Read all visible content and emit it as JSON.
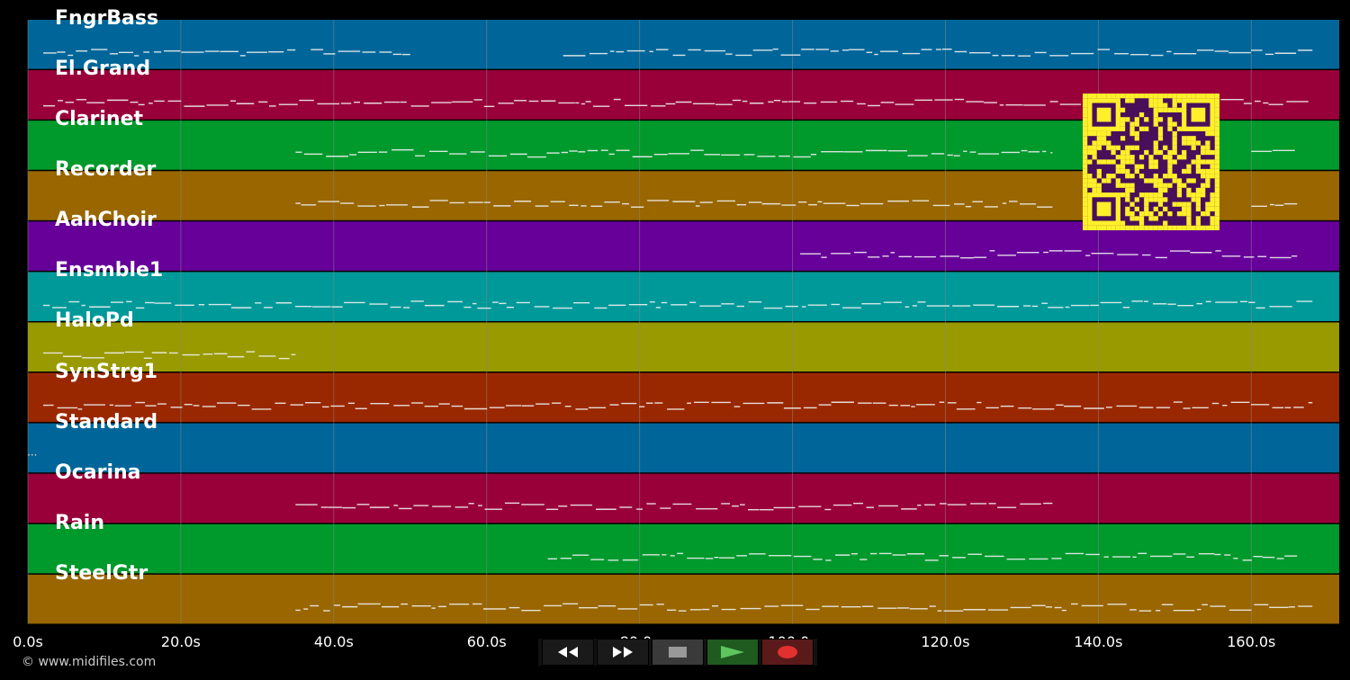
{
  "app": {
    "copyright": "© www.midifiles.com"
  },
  "colors": {
    "background": "#000000",
    "grid": "#8a8a8a",
    "note": "#f0f0f0",
    "qr_fg": "#fff02a",
    "qr_bg": "#4a0f5a"
  },
  "tracks": [
    {
      "name": "FngrBass",
      "color": "#006699",
      "notes": [
        [
          2,
          35
        ],
        [
          37,
          50
        ],
        [
          70,
          168
        ]
      ]
    },
    {
      "name": "El.Grand",
      "color": "#99003a",
      "notes": [
        [
          2,
          168
        ]
      ]
    },
    {
      "name": "Clarinet",
      "color": "#00992c",
      "notes": [
        [
          35,
          134
        ],
        [
          160,
          166
        ]
      ]
    },
    {
      "name": "Recorder",
      "color": "#996600",
      "notes": [
        [
          35,
          134
        ],
        [
          160,
          166
        ]
      ]
    },
    {
      "name": "AahChoir",
      "color": "#660099",
      "notes": [
        [
          101,
          166
        ]
      ]
    },
    {
      "name": "Ensmble1",
      "color": "#009999",
      "notes": [
        [
          2,
          168
        ]
      ]
    },
    {
      "name": "HaloPd",
      "color": "#999900",
      "notes": [
        [
          2,
          35
        ]
      ]
    },
    {
      "name": "SynStrg1",
      "color": "#992800",
      "notes": [
        [
          2,
          168
        ]
      ]
    },
    {
      "name": "Standard",
      "color": "#006699",
      "notes": []
    },
    {
      "name": "Ocarina",
      "color": "#99003a",
      "notes": [
        [
          35,
          134
        ]
      ]
    },
    {
      "name": "Rain",
      "color": "#00992c",
      "notes": [
        [
          68,
          166
        ]
      ]
    },
    {
      "name": "SteelGtr",
      "color": "#996600",
      "notes": [
        [
          35,
          168
        ]
      ]
    }
  ],
  "timeline": {
    "xmin": 0,
    "xmax": 171.5,
    "ticks": [
      "0.0s",
      "20.0s",
      "40.0s",
      "60.0s",
      "80.0s",
      "100.0s",
      "120.0s",
      "140.0s",
      "160.0s"
    ],
    "tick_values": [
      0,
      20,
      40,
      60,
      80,
      100,
      120,
      140,
      160
    ],
    "marker_text": "..."
  },
  "transport": [
    {
      "name": "rewind-button",
      "icon": "rewind-icon"
    },
    {
      "name": "fast-forward-button",
      "icon": "fast-forward-icon"
    },
    {
      "name": "stop-button",
      "icon": "stop-icon"
    },
    {
      "name": "play-button",
      "icon": "play-icon"
    },
    {
      "name": "record-button",
      "icon": "record-icon"
    }
  ]
}
